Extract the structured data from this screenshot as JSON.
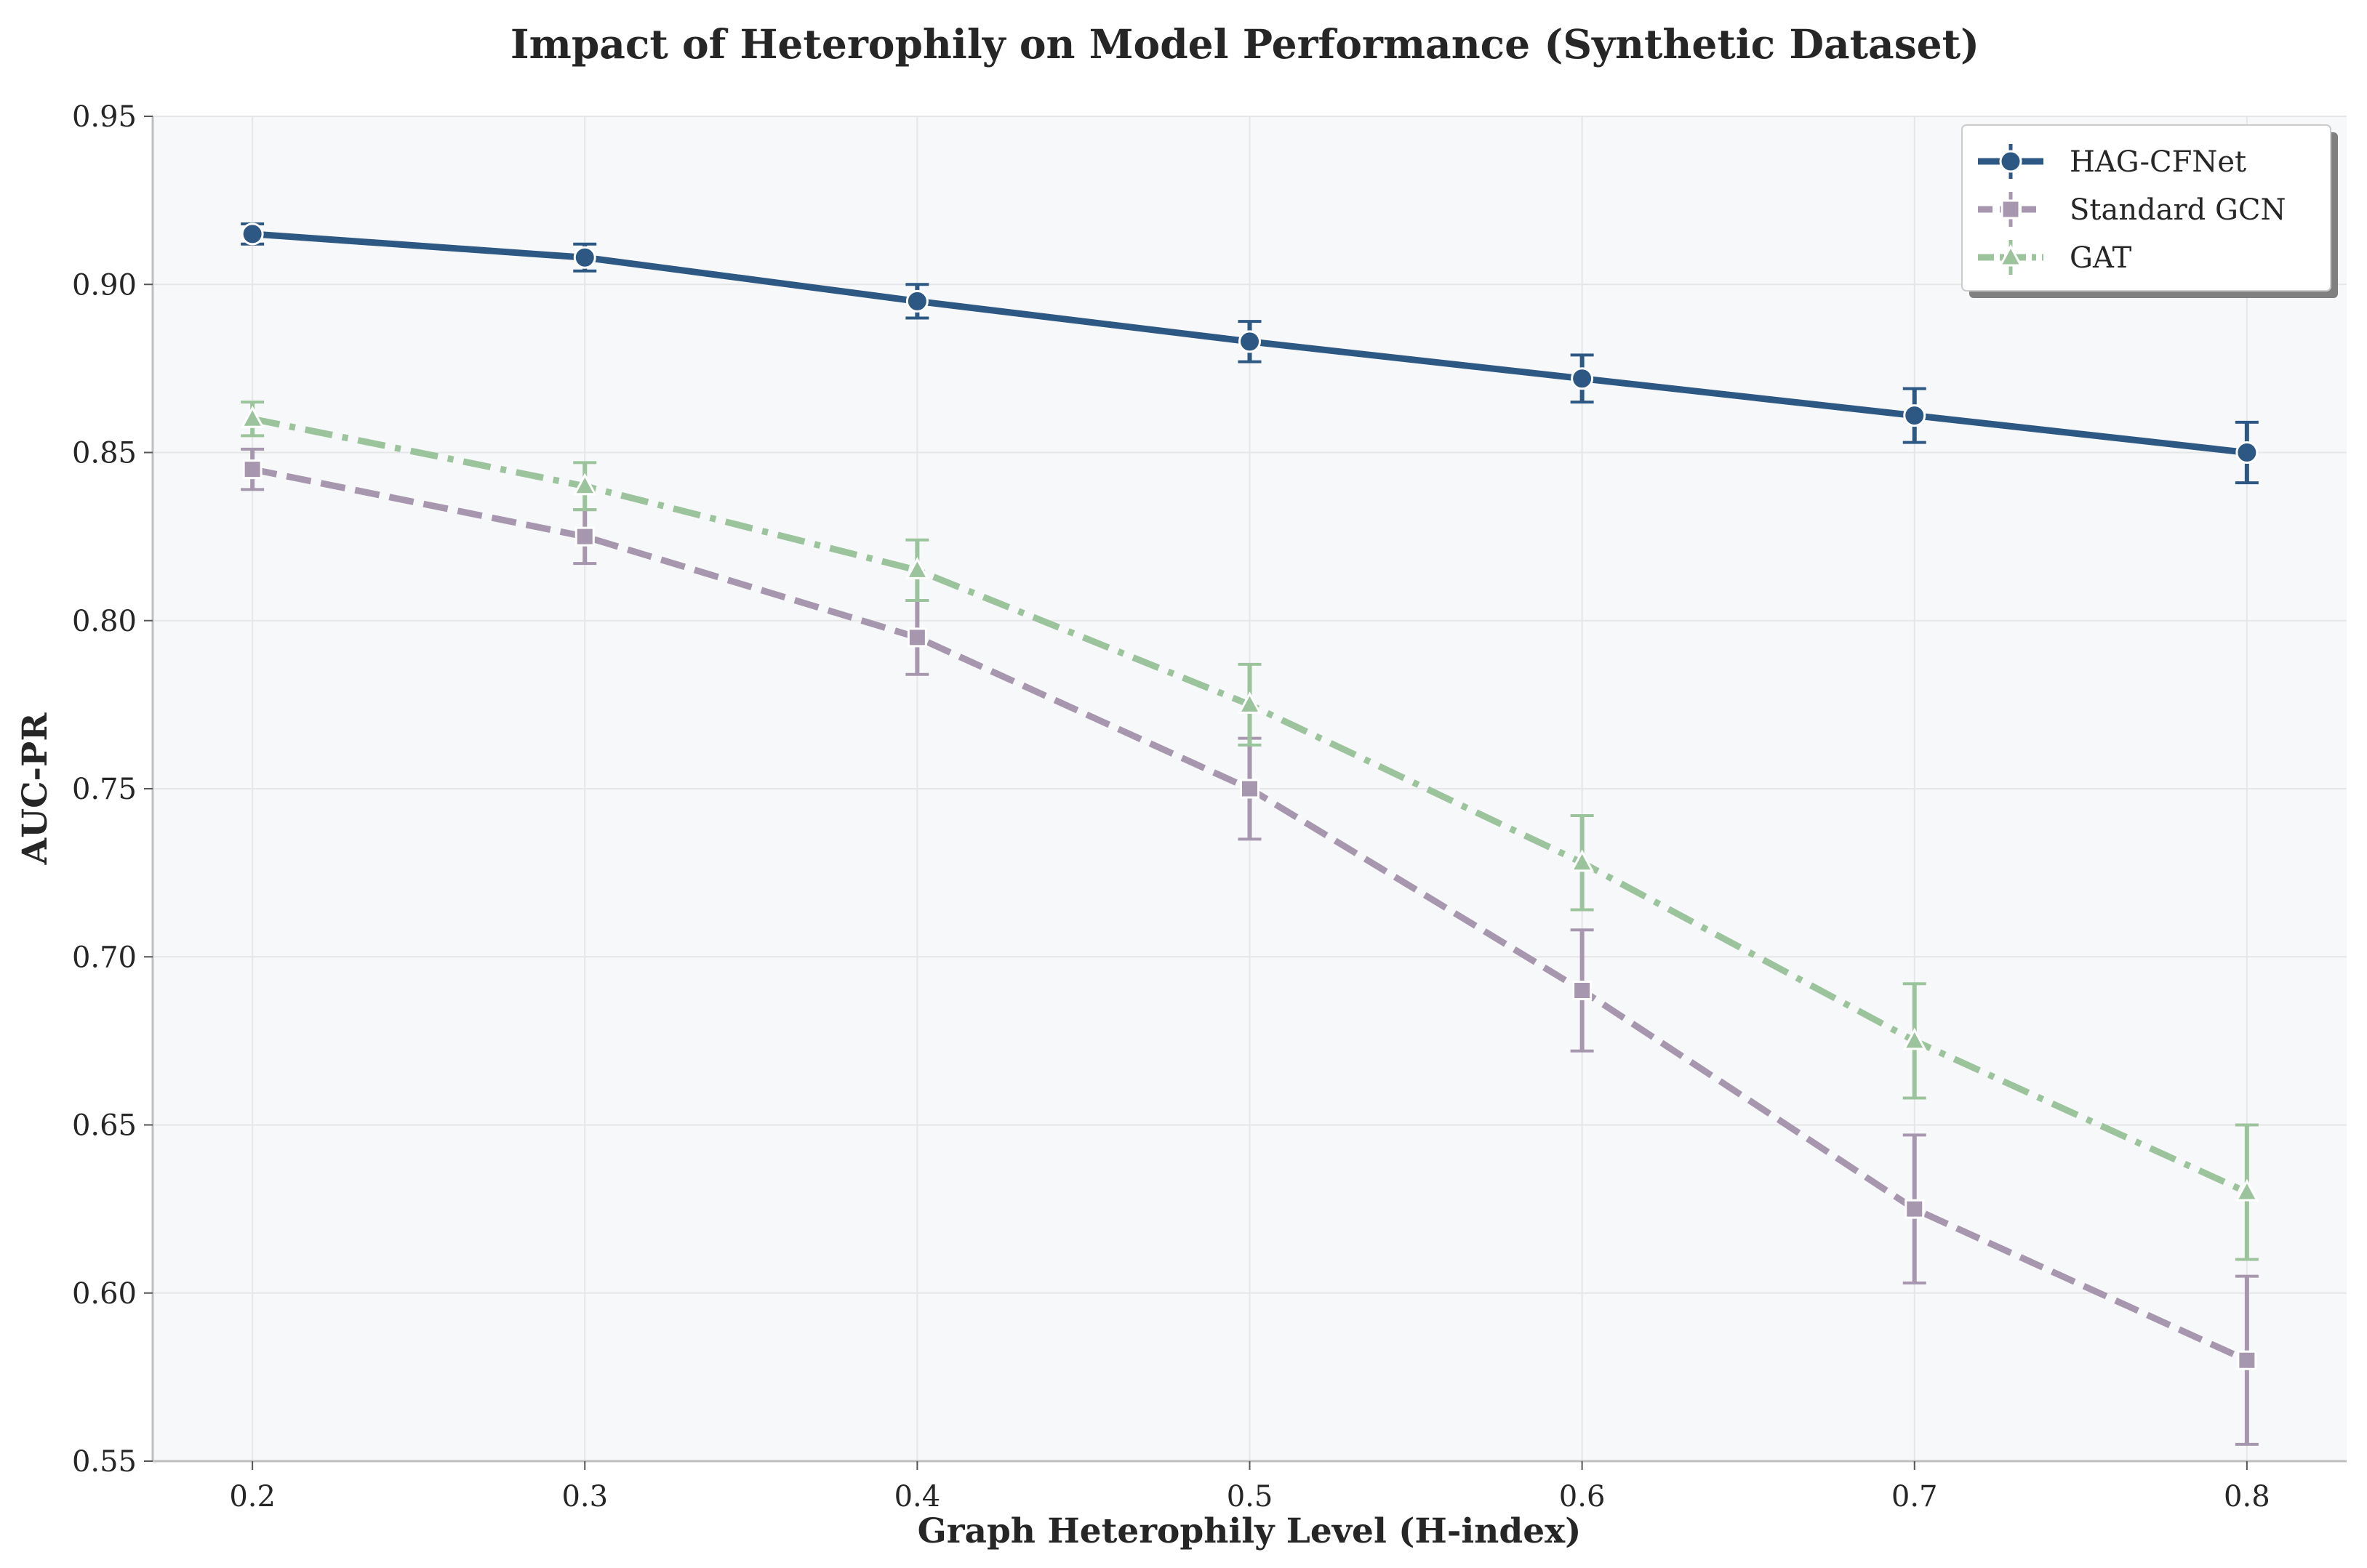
{
  "chart_data": {
    "type": "line",
    "title": "Impact of Heterophily on Model Performance (Synthetic Dataset)",
    "xlabel": "Graph Heterophily Level (H-index)",
    "ylabel": "AUC-PR",
    "x": [
      0.2,
      0.3,
      0.4,
      0.5,
      0.6,
      0.7,
      0.8
    ],
    "x_tick_labels": [
      "0.2",
      "0.3",
      "0.4",
      "0.5",
      "0.6",
      "0.7",
      "0.8"
    ],
    "xlim": [
      0.17,
      0.83
    ],
    "ylim": [
      0.55,
      0.95
    ],
    "y_ticks": [
      0.55,
      0.6,
      0.65,
      0.7,
      0.75,
      0.8,
      0.85,
      0.9,
      0.95
    ],
    "y_tick_labels": [
      "0.55",
      "0.60",
      "0.65",
      "0.70",
      "0.75",
      "0.80",
      "0.85",
      "0.90",
      "0.95"
    ],
    "grid": true,
    "legend_position": "top-right",
    "series": [
      {
        "name": "HAG-CFNet",
        "color": "#2e5884",
        "marker": "circle",
        "line_style": "solid",
        "values": [
          0.915,
          0.908,
          0.895,
          0.883,
          0.872,
          0.861,
          0.85
        ],
        "errors": [
          0.003,
          0.004,
          0.005,
          0.006,
          0.007,
          0.008,
          0.009
        ]
      },
      {
        "name": "Standard GCN",
        "color": "#a797ae",
        "marker": "square",
        "line_style": "dashed",
        "values": [
          0.845,
          0.825,
          0.795,
          0.75,
          0.69,
          0.625,
          0.58
        ],
        "errors": [
          0.006,
          0.008,
          0.011,
          0.015,
          0.018,
          0.022,
          0.025
        ]
      },
      {
        "name": "GAT",
        "color": "#9cc49c",
        "marker": "triangle",
        "line_style": "dashdot",
        "values": [
          0.86,
          0.84,
          0.815,
          0.775,
          0.728,
          0.675,
          0.63
        ],
        "errors": [
          0.005,
          0.007,
          0.009,
          0.012,
          0.014,
          0.017,
          0.02
        ]
      }
    ]
  }
}
